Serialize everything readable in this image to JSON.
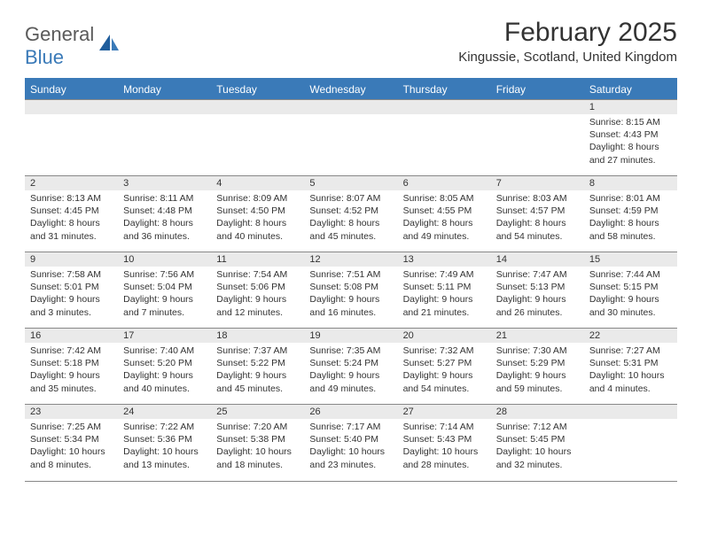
{
  "brand": {
    "part1": "General",
    "part2": "Blue"
  },
  "title": "February 2025",
  "location": "Kingussie, Scotland, United Kingdom",
  "colors": {
    "header_bg": "#3a7ab8",
    "header_text": "#ffffff",
    "daynum_bg": "#eaeaea",
    "text": "#333333",
    "border": "#888888",
    "logo_gray": "#5a5a5a",
    "logo_blue": "#3a7ab8"
  },
  "dayHeaders": [
    "Sunday",
    "Monday",
    "Tuesday",
    "Wednesday",
    "Thursday",
    "Friday",
    "Saturday"
  ],
  "weeks": [
    [
      {
        "n": "",
        "lines": []
      },
      {
        "n": "",
        "lines": []
      },
      {
        "n": "",
        "lines": []
      },
      {
        "n": "",
        "lines": []
      },
      {
        "n": "",
        "lines": []
      },
      {
        "n": "",
        "lines": []
      },
      {
        "n": "1",
        "lines": [
          "Sunrise: 8:15 AM",
          "Sunset: 4:43 PM",
          "Daylight: 8 hours and 27 minutes."
        ]
      }
    ],
    [
      {
        "n": "2",
        "lines": [
          "Sunrise: 8:13 AM",
          "Sunset: 4:45 PM",
          "Daylight: 8 hours and 31 minutes."
        ]
      },
      {
        "n": "3",
        "lines": [
          "Sunrise: 8:11 AM",
          "Sunset: 4:48 PM",
          "Daylight: 8 hours and 36 minutes."
        ]
      },
      {
        "n": "4",
        "lines": [
          "Sunrise: 8:09 AM",
          "Sunset: 4:50 PM",
          "Daylight: 8 hours and 40 minutes."
        ]
      },
      {
        "n": "5",
        "lines": [
          "Sunrise: 8:07 AM",
          "Sunset: 4:52 PM",
          "Daylight: 8 hours and 45 minutes."
        ]
      },
      {
        "n": "6",
        "lines": [
          "Sunrise: 8:05 AM",
          "Sunset: 4:55 PM",
          "Daylight: 8 hours and 49 minutes."
        ]
      },
      {
        "n": "7",
        "lines": [
          "Sunrise: 8:03 AM",
          "Sunset: 4:57 PM",
          "Daylight: 8 hours and 54 minutes."
        ]
      },
      {
        "n": "8",
        "lines": [
          "Sunrise: 8:01 AM",
          "Sunset: 4:59 PM",
          "Daylight: 8 hours and 58 minutes."
        ]
      }
    ],
    [
      {
        "n": "9",
        "lines": [
          "Sunrise: 7:58 AM",
          "Sunset: 5:01 PM",
          "Daylight: 9 hours and 3 minutes."
        ]
      },
      {
        "n": "10",
        "lines": [
          "Sunrise: 7:56 AM",
          "Sunset: 5:04 PM",
          "Daylight: 9 hours and 7 minutes."
        ]
      },
      {
        "n": "11",
        "lines": [
          "Sunrise: 7:54 AM",
          "Sunset: 5:06 PM",
          "Daylight: 9 hours and 12 minutes."
        ]
      },
      {
        "n": "12",
        "lines": [
          "Sunrise: 7:51 AM",
          "Sunset: 5:08 PM",
          "Daylight: 9 hours and 16 minutes."
        ]
      },
      {
        "n": "13",
        "lines": [
          "Sunrise: 7:49 AM",
          "Sunset: 5:11 PM",
          "Daylight: 9 hours and 21 minutes."
        ]
      },
      {
        "n": "14",
        "lines": [
          "Sunrise: 7:47 AM",
          "Sunset: 5:13 PM",
          "Daylight: 9 hours and 26 minutes."
        ]
      },
      {
        "n": "15",
        "lines": [
          "Sunrise: 7:44 AM",
          "Sunset: 5:15 PM",
          "Daylight: 9 hours and 30 minutes."
        ]
      }
    ],
    [
      {
        "n": "16",
        "lines": [
          "Sunrise: 7:42 AM",
          "Sunset: 5:18 PM",
          "Daylight: 9 hours and 35 minutes."
        ]
      },
      {
        "n": "17",
        "lines": [
          "Sunrise: 7:40 AM",
          "Sunset: 5:20 PM",
          "Daylight: 9 hours and 40 minutes."
        ]
      },
      {
        "n": "18",
        "lines": [
          "Sunrise: 7:37 AM",
          "Sunset: 5:22 PM",
          "Daylight: 9 hours and 45 minutes."
        ]
      },
      {
        "n": "19",
        "lines": [
          "Sunrise: 7:35 AM",
          "Sunset: 5:24 PM",
          "Daylight: 9 hours and 49 minutes."
        ]
      },
      {
        "n": "20",
        "lines": [
          "Sunrise: 7:32 AM",
          "Sunset: 5:27 PM",
          "Daylight: 9 hours and 54 minutes."
        ]
      },
      {
        "n": "21",
        "lines": [
          "Sunrise: 7:30 AM",
          "Sunset: 5:29 PM",
          "Daylight: 9 hours and 59 minutes."
        ]
      },
      {
        "n": "22",
        "lines": [
          "Sunrise: 7:27 AM",
          "Sunset: 5:31 PM",
          "Daylight: 10 hours and 4 minutes."
        ]
      }
    ],
    [
      {
        "n": "23",
        "lines": [
          "Sunrise: 7:25 AM",
          "Sunset: 5:34 PM",
          "Daylight: 10 hours and 8 minutes."
        ]
      },
      {
        "n": "24",
        "lines": [
          "Sunrise: 7:22 AM",
          "Sunset: 5:36 PM",
          "Daylight: 10 hours and 13 minutes."
        ]
      },
      {
        "n": "25",
        "lines": [
          "Sunrise: 7:20 AM",
          "Sunset: 5:38 PM",
          "Daylight: 10 hours and 18 minutes."
        ]
      },
      {
        "n": "26",
        "lines": [
          "Sunrise: 7:17 AM",
          "Sunset: 5:40 PM",
          "Daylight: 10 hours and 23 minutes."
        ]
      },
      {
        "n": "27",
        "lines": [
          "Sunrise: 7:14 AM",
          "Sunset: 5:43 PM",
          "Daylight: 10 hours and 28 minutes."
        ]
      },
      {
        "n": "28",
        "lines": [
          "Sunrise: 7:12 AM",
          "Sunset: 5:45 PM",
          "Daylight: 10 hours and 32 minutes."
        ]
      },
      {
        "n": "",
        "lines": []
      }
    ]
  ]
}
